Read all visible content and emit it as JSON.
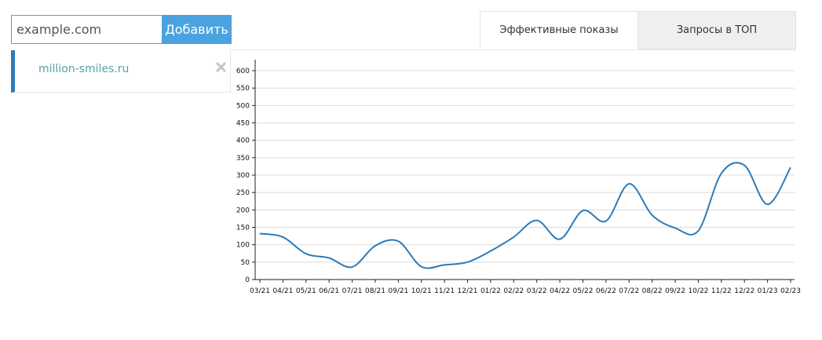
{
  "form": {
    "domain_placeholder": "example.com",
    "add_label": "Добавить"
  },
  "sites": [
    {
      "name": "million-smiles.ru",
      "remove_icon": "close-x-icon"
    }
  ],
  "tabs": [
    {
      "label": "Эффективные показы",
      "active": true
    },
    {
      "label": "Запросы в ТОП",
      "active": false
    }
  ],
  "colors": {
    "accent": "#4aa3df",
    "line": "#2b7bb9",
    "grid": "#dcdcdc"
  },
  "chart_data": {
    "type": "line",
    "title": "",
    "xlabel": "",
    "ylabel": "",
    "grid": true,
    "ylim": [
      0,
      600
    ],
    "yticks": [
      0,
      50,
      100,
      150,
      200,
      250,
      300,
      350,
      400,
      450,
      500,
      550,
      600
    ],
    "categories": [
      "03/21",
      "04/21",
      "05/21",
      "06/21",
      "07/21",
      "08/21",
      "09/21",
      "10/21",
      "11/21",
      "12/21",
      "01/22",
      "02/22",
      "03/22",
      "04/22",
      "05/22",
      "06/22",
      "07/22",
      "08/22",
      "09/22",
      "10/22",
      "11/22",
      "12/22",
      "01/23",
      "02/23"
    ],
    "series": [
      {
        "values": [
          132,
          122,
          74,
          62,
          36,
          97,
          110,
          37,
          42,
          50,
          82,
          122,
          170,
          116,
          198,
          168,
          275,
          185,
          148,
          140,
          305,
          328,
          216,
          322
        ]
      }
    ]
  }
}
